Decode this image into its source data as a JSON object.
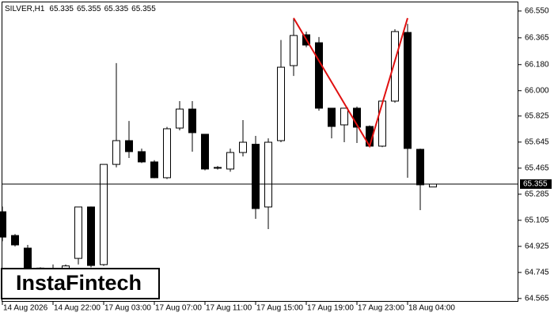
{
  "chart_data": {
    "type": "candlestick",
    "symbol": "SILVER,H1",
    "watermark": "InstaFintech",
    "categories": [
      "14 Aug 2026",
      null,
      null,
      null,
      "14 Aug 22:00",
      null,
      null,
      null,
      "17 Aug 03:00",
      null,
      null,
      null,
      "17 Aug 07:00",
      null,
      null,
      null,
      "17 Aug 11:00",
      null,
      null,
      null,
      "17 Aug 15:00",
      null,
      null,
      null,
      "17 Aug 19:00",
      null,
      null,
      null,
      "17 Aug 23:00",
      null,
      null,
      null,
      "18 Aug 04:00",
      null,
      null
    ],
    "open": [
      65.164,
      65.0,
      64.913,
      64.775,
      64.77,
      64.75,
      64.842,
      65.197,
      64.799,
      65.491,
      65.655,
      65.579,
      65.508,
      65.399,
      65.742,
      65.873,
      65.699,
      65.47,
      65.459,
      65.573,
      65.63,
      65.197,
      65.655,
      66.173,
      66.386,
      66.331,
      65.879,
      65.764,
      65.879,
      65.753,
      65.617,
      65.928,
      66.402,
      65.595,
      65.335
    ],
    "high": [
      65.2,
      65.01,
      64.935,
      64.78,
      64.8,
      64.8,
      65.197,
      65.2,
      65.491,
      66.19,
      65.791,
      65.6,
      65.52,
      65.75,
      65.928,
      65.928,
      65.7,
      65.48,
      65.6,
      65.797,
      65.688,
      65.671,
      66.35,
      66.501,
      66.408,
      66.37,
      65.88,
      65.88,
      65.89,
      65.76,
      65.93,
      66.424,
      66.462,
      65.6,
      65.355
    ],
    "low": [
      64.96,
      64.924,
      64.76,
      64.74,
      64.7,
      64.72,
      64.8,
      64.78,
      64.79,
      65.47,
      65.535,
      65.5,
      65.395,
      65.39,
      65.726,
      65.579,
      65.45,
      65.455,
      65.44,
      65.546,
      65.115,
      65.044,
      65.644,
      66.102,
      66.3,
      65.862,
      65.671,
      65.644,
      65.639,
      65.61,
      65.61,
      65.917,
      65.399,
      65.175,
      65.335
    ],
    "close": [
      64.989,
      64.935,
      64.771,
      64.77,
      64.75,
      64.79,
      65.197,
      64.793,
      65.491,
      65.655,
      65.579,
      65.508,
      65.399,
      65.737,
      65.873,
      65.71,
      65.459,
      65.465,
      65.573,
      65.644,
      65.186,
      65.644,
      66.162,
      66.381,
      66.315,
      65.879,
      65.753,
      65.879,
      65.748,
      65.617,
      65.928,
      66.408,
      65.601,
      65.35,
      65.355
    ],
    "up_color": "#ffffff",
    "down_color": "#000000",
    "current_price": 65.355,
    "pattern": {
      "color": "#e01010",
      "x": [
        23,
        29,
        32
      ],
      "y": [
        66.501,
        65.617,
        66.501
      ]
    },
    "ylim": [
      64.526,
      66.626
    ],
    "yticks": [
      {
        "value": 66.55,
        "label": "66.550"
      },
      66.365,
      {
        "value": 66.18,
        "label": "66.180"
      },
      {
        "value": 66,
        "label": "66.000"
      },
      65.825,
      65.645,
      65.465,
      65.285,
      65.105,
      64.925,
      64.745,
      64.565
    ]
  }
}
